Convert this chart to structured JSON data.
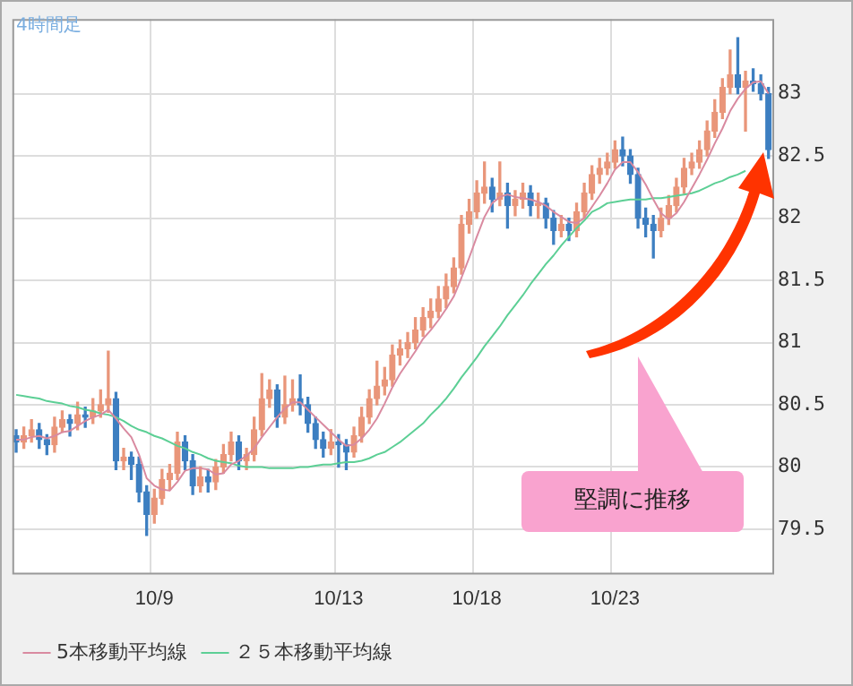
{
  "chart_data": {
    "type": "candlestick",
    "title": "4時間足",
    "categories": [
      null,
      null,
      null,
      null,
      null,
      null,
      null,
      null,
      null,
      null,
      null,
      null,
      null,
      null,
      null,
      null,
      null,
      null,
      "10/9",
      null,
      null,
      null,
      null,
      null,
      null,
      null,
      null,
      null,
      null,
      null,
      null,
      null,
      null,
      null,
      null,
      null,
      null,
      null,
      null,
      null,
      null,
      null,
      "10/13",
      null,
      null,
      null,
      null,
      null,
      null,
      null,
      null,
      null,
      null,
      null,
      null,
      null,
      null,
      null,
      null,
      null,
      "10/18",
      null,
      null,
      null,
      null,
      null,
      null,
      null,
      null,
      null,
      null,
      null,
      null,
      null,
      null,
      null,
      null,
      null,
      "10/23",
      null,
      null,
      null,
      null,
      null,
      null,
      null,
      null,
      null,
      null,
      null,
      null,
      null,
      null,
      null,
      null,
      null,
      null,
      null,
      null
    ],
    "ohlc": [
      [
        80.25,
        80.3,
        80.12,
        80.2
      ],
      [
        80.2,
        80.32,
        80.15,
        80.25
      ],
      [
        80.25,
        80.38,
        80.2,
        80.3
      ],
      [
        80.3,
        80.35,
        80.15,
        80.22
      ],
      [
        80.22,
        80.26,
        80.1,
        80.18
      ],
      [
        80.18,
        80.4,
        80.12,
        80.32
      ],
      [
        80.32,
        80.45,
        80.28,
        80.38
      ],
      [
        80.38,
        80.42,
        80.25,
        80.35
      ],
      [
        80.35,
        80.52,
        80.3,
        80.42
      ],
      [
        80.42,
        80.48,
        80.32,
        80.4
      ],
      [
        80.4,
        80.55,
        80.35,
        80.45
      ],
      [
        80.45,
        80.62,
        80.4,
        80.5
      ],
      [
        80.5,
        80.93,
        80.44,
        80.55
      ],
      [
        80.55,
        80.6,
        79.98,
        80.05
      ],
      [
        80.05,
        80.15,
        79.98,
        80.08
      ],
      [
        80.08,
        80.12,
        79.9,
        80.02
      ],
      [
        80.02,
        80.08,
        79.72,
        79.8
      ],
      [
        79.8,
        79.85,
        79.45,
        79.62
      ],
      [
        79.62,
        79.82,
        79.55,
        79.75
      ],
      [
        79.75,
        79.98,
        79.7,
        79.9
      ],
      [
        79.9,
        80.02,
        79.82,
        79.95
      ],
      [
        79.95,
        80.28,
        79.9,
        80.2
      ],
      [
        80.2,
        80.25,
        79.98,
        80.05
      ],
      [
        80.05,
        80.1,
        79.78,
        79.85
      ],
      [
        79.85,
        80.0,
        79.8,
        79.92
      ],
      [
        79.92,
        79.98,
        79.8,
        79.88
      ],
      [
        79.88,
        80.06,
        79.82,
        80.0
      ],
      [
        80.0,
        80.18,
        79.95,
        80.1
      ],
      [
        80.1,
        80.28,
        80.05,
        80.2
      ],
      [
        80.2,
        80.25,
        79.98,
        80.05
      ],
      [
        80.05,
        80.15,
        79.98,
        80.1
      ],
      [
        80.1,
        80.4,
        80.05,
        80.3
      ],
      [
        80.3,
        80.75,
        80.25,
        80.55
      ],
      [
        80.55,
        80.7,
        80.48,
        80.62
      ],
      [
        80.62,
        80.66,
        80.32,
        80.4
      ],
      [
        80.4,
        80.73,
        80.35,
        80.5
      ],
      [
        80.5,
        80.7,
        80.45,
        80.55
      ],
      [
        80.55,
        80.74,
        80.42,
        80.5
      ],
      [
        80.5,
        80.56,
        80.28,
        80.35
      ],
      [
        80.35,
        80.4,
        80.15,
        80.22
      ],
      [
        80.22,
        80.28,
        80.08,
        80.15
      ],
      [
        80.15,
        80.3,
        80.1,
        80.2
      ],
      [
        80.2,
        80.26,
        80.0,
        80.18
      ],
      [
        80.18,
        80.22,
        79.98,
        80.12
      ],
      [
        80.12,
        80.32,
        80.08,
        80.25
      ],
      [
        80.25,
        80.48,
        80.2,
        80.4
      ],
      [
        80.4,
        80.62,
        80.35,
        80.55
      ],
      [
        80.55,
        80.85,
        80.5,
        80.65
      ],
      [
        80.65,
        80.8,
        80.58,
        80.7
      ],
      [
        80.7,
        80.98,
        80.65,
        80.9
      ],
      [
        80.9,
        81.02,
        80.82,
        80.95
      ],
      [
        80.95,
        81.08,
        80.88,
        81.0
      ],
      [
        81.0,
        81.2,
        80.95,
        81.1
      ],
      [
        81.1,
        81.28,
        81.05,
        81.2
      ],
      [
        81.2,
        81.35,
        81.12,
        81.25
      ],
      [
        81.25,
        81.45,
        81.2,
        81.35
      ],
      [
        81.35,
        81.55,
        81.28,
        81.45
      ],
      [
        81.45,
        81.68,
        81.4,
        81.6
      ],
      [
        81.6,
        82.02,
        81.55,
        81.95
      ],
      [
        81.95,
        82.15,
        81.88,
        82.05
      ],
      [
        82.05,
        82.3,
        82.0,
        82.2
      ],
      [
        82.2,
        82.45,
        82.12,
        82.25
      ],
      [
        82.25,
        82.32,
        82.05,
        82.15
      ],
      [
        82.15,
        82.45,
        82.1,
        82.2
      ],
      [
        82.2,
        82.28,
        81.92,
        82.1
      ],
      [
        82.1,
        82.22,
        82.02,
        82.15
      ],
      [
        82.15,
        82.28,
        82.08,
        82.2
      ],
      [
        82.2,
        82.26,
        82.02,
        82.1
      ],
      [
        82.1,
        82.2,
        82.0,
        82.12
      ],
      [
        82.12,
        82.16,
        81.92,
        82.0
      ],
      [
        82.0,
        82.06,
        81.79,
        81.9
      ],
      [
        81.9,
        82.02,
        81.85,
        81.95
      ],
      [
        81.95,
        82.0,
        81.82,
        81.9
      ],
      [
        81.9,
        82.12,
        81.85,
        82.05
      ],
      [
        82.05,
        82.28,
        82.0,
        82.2
      ],
      [
        82.2,
        82.42,
        82.15,
        82.35
      ],
      [
        82.35,
        82.48,
        82.28,
        82.4
      ],
      [
        82.4,
        82.52,
        82.35,
        82.45
      ],
      [
        82.45,
        82.62,
        82.4,
        82.55
      ],
      [
        82.55,
        82.65,
        82.42,
        82.5
      ],
      [
        82.5,
        82.55,
        82.28,
        82.35
      ],
      [
        82.35,
        82.4,
        81.92,
        82.0
      ],
      [
        82.0,
        82.08,
        81.85,
        81.95
      ],
      [
        81.95,
        82.02,
        81.68,
        81.9
      ],
      [
        81.9,
        82.08,
        81.85,
        82.0
      ],
      [
        82.0,
        82.18,
        81.95,
        82.1
      ],
      [
        82.1,
        82.32,
        82.05,
        82.25
      ],
      [
        82.25,
        82.48,
        82.2,
        82.4
      ],
      [
        82.4,
        82.52,
        82.35,
        82.45
      ],
      [
        82.45,
        82.62,
        82.4,
        82.55
      ],
      [
        82.55,
        82.78,
        82.5,
        82.7
      ],
      [
        82.7,
        82.95,
        82.65,
        82.85
      ],
      [
        82.85,
        83.12,
        82.8,
        83.05
      ],
      [
        83.05,
        83.35,
        83.0,
        83.15
      ],
      [
        83.15,
        83.45,
        83.0,
        83.05
      ],
      [
        83.05,
        83.18,
        82.7,
        83.1
      ],
      [
        83.1,
        83.2,
        83.02,
        83.08
      ],
      [
        83.08,
        83.15,
        82.95,
        83.0
      ],
      [
        83.0,
        83.05,
        82.48,
        82.55
      ]
    ],
    "colors": [
      "#3d7fc1",
      "#e9967a",
      "#e9967a",
      "#3d7fc1",
      "#3d7fc1",
      "#e9967a",
      "#e9967a",
      "#3d7fc1",
      "#e9967a",
      "#3d7fc1",
      "#e9967a",
      "#e9967a",
      "#e9967a",
      "#3d7fc1",
      "#e9967a",
      "#3d7fc1",
      "#3d7fc1",
      "#3d7fc1",
      "#e9967a",
      "#e9967a",
      "#e9967a",
      "#e9967a",
      "#3d7fc1",
      "#3d7fc1",
      "#e9967a",
      "#3d7fc1",
      "#e9967a",
      "#e9967a",
      "#e9967a",
      "#3d7fc1",
      "#e9967a",
      "#e9967a",
      "#e9967a",
      "#e9967a",
      "#3d7fc1",
      "#e9967a",
      "#e9967a",
      "#3d7fc1",
      "#3d7fc1",
      "#3d7fc1",
      "#3d7fc1",
      "#e9967a",
      "#3d7fc1",
      "#3d7fc1",
      "#e9967a",
      "#e9967a",
      "#e9967a",
      "#e9967a",
      "#e9967a",
      "#e9967a",
      "#e9967a",
      "#e9967a",
      "#e9967a",
      "#e9967a",
      "#e9967a",
      "#e9967a",
      "#e9967a",
      "#e9967a",
      "#e9967a",
      "#e9967a",
      "#e9967a",
      "#e9967a",
      "#3d7fc1",
      "#e9967a",
      "#3d7fc1",
      "#e9967a",
      "#e9967a",
      "#3d7fc1",
      "#e9967a",
      "#3d7fc1",
      "#3d7fc1",
      "#e9967a",
      "#3d7fc1",
      "#e9967a",
      "#e9967a",
      "#e9967a",
      "#e9967a",
      "#e9967a",
      "#e9967a",
      "#3d7fc1",
      "#3d7fc1",
      "#3d7fc1",
      "#3d7fc1",
      "#3d7fc1",
      "#e9967a",
      "#e9967a",
      "#e9967a",
      "#e9967a",
      "#e9967a",
      "#e9967a",
      "#e9967a",
      "#e9967a",
      "#e9967a",
      "#e9967a",
      "#3d7fc1",
      "#e9967a",
      "#3d7fc1",
      "#3d7fc1",
      "#3d7fc1"
    ],
    "series": [
      {
        "name": "5本移動平均線",
        "type": "line",
        "color": "#d98aa0",
        "values": [
          80.22,
          80.22,
          80.24,
          80.25,
          80.23,
          80.25,
          80.28,
          80.29,
          80.33,
          80.37,
          80.4,
          80.42,
          80.46,
          80.39,
          80.31,
          80.24,
          80.1,
          79.91,
          79.85,
          79.82,
          79.81,
          79.88,
          79.97,
          79.99,
          79.99,
          79.98,
          79.94,
          79.95,
          80.02,
          80.05,
          80.09,
          80.15,
          80.24,
          80.32,
          80.4,
          80.47,
          80.52,
          80.52,
          80.46,
          80.4,
          80.34,
          80.28,
          80.22,
          80.17,
          80.18,
          80.23,
          80.3,
          80.39,
          80.51,
          80.64,
          80.75,
          80.84,
          80.93,
          81.03,
          81.1,
          81.18,
          81.27,
          81.37,
          81.52,
          81.68,
          81.85,
          82.01,
          82.12,
          82.17,
          82.19,
          82.17,
          82.16,
          82.15,
          82.13,
          82.1,
          82.05,
          82.01,
          81.97,
          81.96,
          82.0,
          82.09,
          82.18,
          82.28,
          82.39,
          82.45,
          82.45,
          82.37,
          82.27,
          82.15,
          82.04,
          81.99,
          82.04,
          82.13,
          82.24,
          82.35,
          82.47,
          82.6,
          82.72,
          82.86,
          82.96,
          83.04,
          83.09,
          83.1,
          83.0
        ]
      },
      {
        "name": "２５本移動平均線",
        "type": "line",
        "color": "#5ccf95",
        "values": [
          80.58,
          80.57,
          80.56,
          80.55,
          80.53,
          80.52,
          80.51,
          80.49,
          80.48,
          80.46,
          80.45,
          80.43,
          80.42,
          80.4,
          80.37,
          80.33,
          80.3,
          80.28,
          80.25,
          80.23,
          80.2,
          80.17,
          80.15,
          80.12,
          80.1,
          80.07,
          80.05,
          80.04,
          80.03,
          80.01,
          80.0,
          80.0,
          80.0,
          79.99,
          79.99,
          79.99,
          79.99,
          80.0,
          80.0,
          80.01,
          80.02,
          80.02,
          80.03,
          80.04,
          80.04,
          80.05,
          80.07,
          80.1,
          80.12,
          80.16,
          80.2,
          80.25,
          80.3,
          80.35,
          80.42,
          80.48,
          80.55,
          80.63,
          80.72,
          80.8,
          80.88,
          80.97,
          81.05,
          81.13,
          81.22,
          81.3,
          81.38,
          81.47,
          81.55,
          81.63,
          81.7,
          81.78,
          81.85,
          81.92,
          81.98,
          82.05,
          82.08,
          82.12,
          82.13,
          82.14,
          82.15,
          82.15,
          82.15,
          82.16,
          82.16,
          82.17,
          82.18,
          82.19,
          82.2,
          82.22,
          82.25,
          82.28,
          82.3,
          82.33,
          82.35,
          82.38,
          null,
          null,
          null
        ]
      }
    ],
    "ylim": [
      79.15,
      83.6
    ],
    "yticks": [
      79.5,
      80,
      80.5,
      81,
      81.5,
      82,
      82.5,
      83
    ],
    "grid": true,
    "legend": "bottom left",
    "annotations": [
      "堅調に推移"
    ]
  }
}
